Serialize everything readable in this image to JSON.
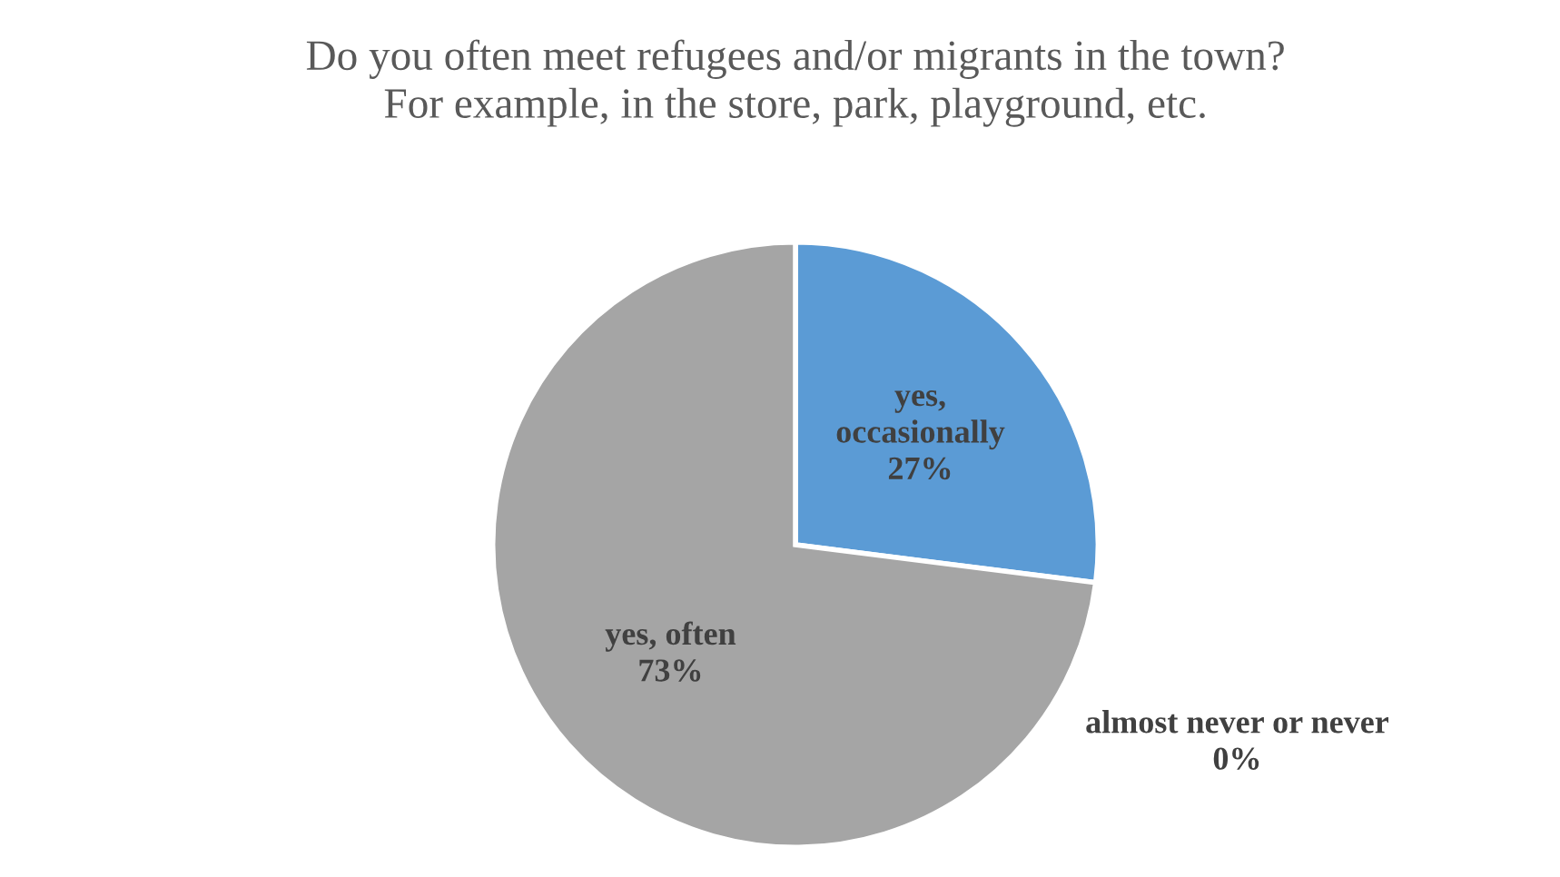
{
  "chart_data": {
    "type": "pie",
    "title": "Do you often meet refugees and/or migrants in the town?\nFor example, in the store, park, playground, etc.",
    "categories": [
      "yes, occasionally",
      "almost never or never",
      "yes, often"
    ],
    "values": [
      27,
      0,
      73
    ],
    "colors": [
      "#5b9bd5",
      null,
      "#a5a5a5"
    ],
    "value_labels": [
      "27%",
      "0%",
      "73%"
    ],
    "legend": false
  }
}
